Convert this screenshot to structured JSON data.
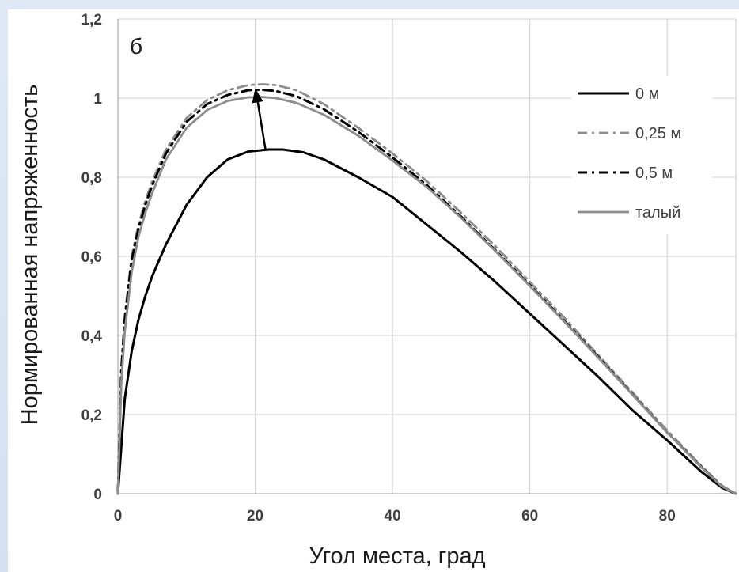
{
  "chart_data": {
    "type": "line",
    "panel_label": "б",
    "xlabel": "Угол места, град",
    "ylabel": "Нормированная напряженность",
    "xlim": [
      0,
      90
    ],
    "ylim": [
      0,
      1.2
    ],
    "x_ticks": [
      "0",
      "20",
      "40",
      "60",
      "80"
    ],
    "x_tick_values": [
      0,
      20,
      40,
      60,
      80
    ],
    "y_ticks": [
      "0",
      "0,2",
      "0,4",
      "0,6",
      "0,8",
      "1",
      "1,2"
    ],
    "y_tick_values": [
      0,
      0.2,
      0.4,
      0.6,
      0.8,
      1.0,
      1.2
    ],
    "grid": true,
    "legend_position": "right",
    "annotation": {
      "type": "arrow",
      "from": [
        21.5,
        0.87
      ],
      "to": [
        20,
        1.025
      ]
    },
    "series": [
      {
        "name": "0 м",
        "color": "#000000",
        "dash": "solid",
        "x": [
          0,
          1,
          2,
          3,
          4,
          5,
          7,
          10,
          13,
          16,
          19,
          22,
          24,
          27,
          30,
          35,
          40,
          45,
          50,
          55,
          60,
          65,
          70,
          75,
          80,
          85,
          88,
          90
        ],
        "y": [
          0,
          0.24,
          0.36,
          0.44,
          0.5,
          0.55,
          0.63,
          0.73,
          0.8,
          0.845,
          0.865,
          0.87,
          0.87,
          0.863,
          0.845,
          0.8,
          0.75,
          0.68,
          0.61,
          0.535,
          0.455,
          0.375,
          0.295,
          0.21,
          0.135,
          0.055,
          0.015,
          0
        ]
      },
      {
        "name": "0,25 м",
        "color": "#8c8c8c",
        "dash": "dashdot",
        "x": [
          0,
          0.5,
          1,
          2,
          3,
          4,
          5,
          7,
          10,
          13,
          16,
          19,
          21,
          23,
          26,
          30,
          35,
          40,
          45,
          50,
          55,
          60,
          65,
          70,
          75,
          80,
          85,
          88,
          90
        ],
        "y": [
          0,
          0.32,
          0.45,
          0.6,
          0.68,
          0.74,
          0.79,
          0.87,
          0.95,
          0.995,
          1.02,
          1.033,
          1.035,
          1.033,
          1.02,
          0.985,
          0.925,
          0.86,
          0.79,
          0.71,
          0.625,
          0.535,
          0.445,
          0.35,
          0.255,
          0.16,
          0.07,
          0.02,
          0
        ]
      },
      {
        "name": "0,5 м",
        "color": "#000000",
        "dash": "dashdot",
        "x": [
          0,
          0.5,
          1,
          2,
          3,
          4,
          5,
          7,
          10,
          13,
          16,
          19,
          21,
          23,
          26,
          30,
          35,
          40,
          45,
          50,
          55,
          60,
          65,
          70,
          75,
          80,
          85,
          88,
          90
        ],
        "y": [
          0,
          0.31,
          0.44,
          0.59,
          0.67,
          0.73,
          0.78,
          0.86,
          0.94,
          0.985,
          1.008,
          1.02,
          1.021,
          1.018,
          1.005,
          0.972,
          0.915,
          0.85,
          0.78,
          0.7,
          0.615,
          0.527,
          0.437,
          0.345,
          0.25,
          0.155,
          0.067,
          0.018,
          0
        ]
      },
      {
        "name": "талый",
        "color": "#8c8c8c",
        "dash": "solid",
        "x": [
          0,
          0.5,
          1,
          2,
          3,
          4,
          5,
          7,
          10,
          13,
          16,
          19,
          21,
          23,
          26,
          30,
          35,
          40,
          45,
          50,
          55,
          60,
          65,
          70,
          75,
          80,
          85,
          88,
          90
        ],
        "y": [
          0,
          0.28,
          0.41,
          0.56,
          0.65,
          0.71,
          0.76,
          0.845,
          0.925,
          0.97,
          0.993,
          1.002,
          1.003,
          1.0,
          0.988,
          0.958,
          0.905,
          0.842,
          0.775,
          0.697,
          0.613,
          0.525,
          0.435,
          0.343,
          0.249,
          0.155,
          0.066,
          0.018,
          0
        ]
      }
    ]
  }
}
